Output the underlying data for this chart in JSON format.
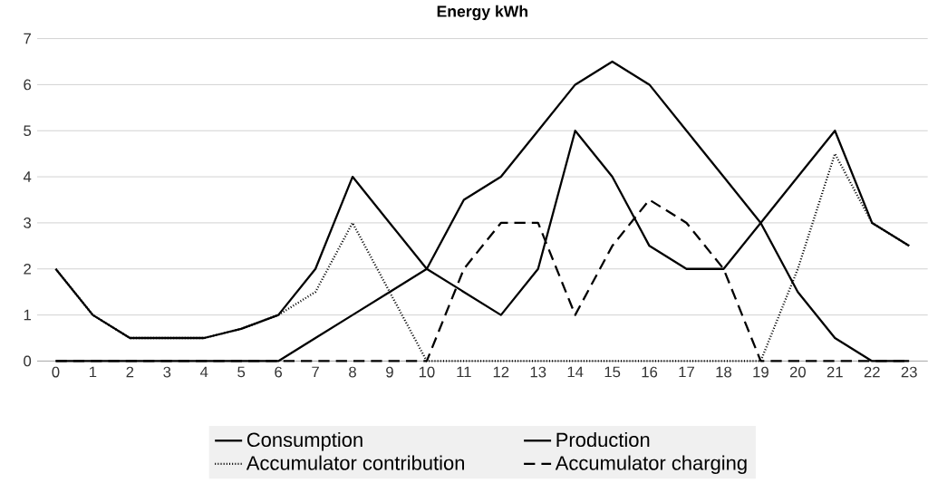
{
  "chart_data": {
    "type": "line",
    "title": "Energy kWh",
    "categories": [
      "0",
      "1",
      "2",
      "3",
      "4",
      "5",
      "6",
      "7",
      "8",
      "9",
      "10",
      "11",
      "12",
      "13",
      "14",
      "15",
      "16",
      "17",
      "18",
      "19",
      "20",
      "21",
      "22",
      "23"
    ],
    "series": [
      {
        "name": "Consumption",
        "color": "#000000",
        "line_style": "solid",
        "values": [
          2,
          1,
          0.5,
          0.5,
          0.5,
          0.7,
          1,
          2,
          4,
          3,
          2,
          1.5,
          1,
          2,
          5,
          4,
          2.5,
          2,
          2,
          3,
          4,
          5,
          3,
          2.5
        ]
      },
      {
        "name": "Production",
        "color": "#000000",
        "line_style": "solid",
        "values": [
          0,
          0,
          0,
          0,
          0,
          0,
          0,
          0.5,
          1,
          1.5,
          2,
          3.5,
          4,
          5,
          6,
          6.5,
          6,
          5,
          4,
          3,
          1.5,
          0.5,
          0,
          0
        ]
      },
      {
        "name": "Accumulator contribution",
        "color": "#000000",
        "line_style": "dotted",
        "values": [
          2,
          1,
          0.5,
          0.5,
          0.5,
          0.7,
          1,
          1.5,
          3,
          1.5,
          0,
          0,
          0,
          0,
          0,
          0,
          0,
          0,
          0,
          0,
          2,
          4.5,
          3,
          2.5
        ]
      },
      {
        "name": "Accumulator charging",
        "color": "#000000",
        "line_style": "dashed",
        "values": [
          0,
          0,
          0,
          0,
          0,
          0,
          0,
          0,
          0,
          0,
          0,
          2,
          3,
          3,
          1,
          2.5,
          3.5,
          3,
          2,
          0,
          0,
          0,
          0,
          0
        ]
      }
    ],
    "ylim": [
      0,
      7
    ],
    "yticks": [
      0,
      1,
      2,
      3,
      4,
      5,
      6,
      7
    ],
    "grid": "y",
    "legend": "bottom",
    "marker": "none"
  }
}
